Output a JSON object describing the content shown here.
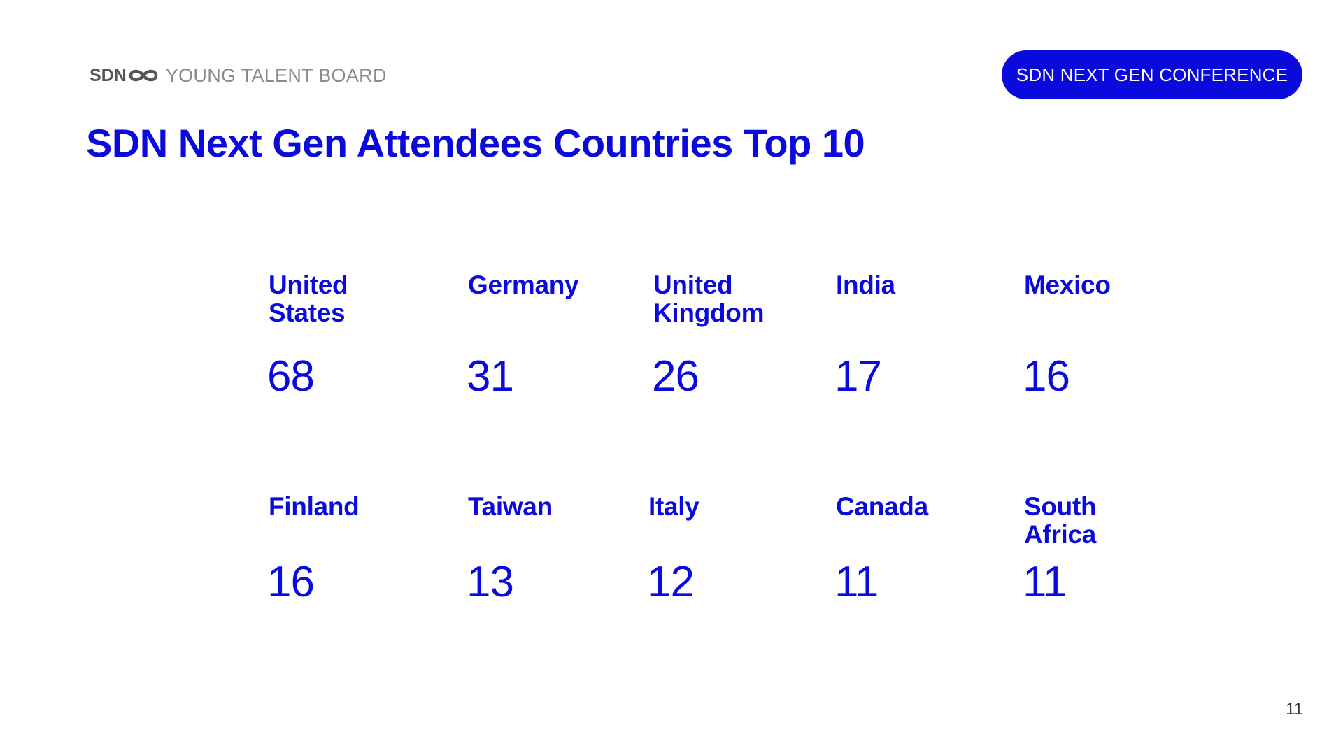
{
  "header": {
    "logo_text": "SDN",
    "brand_subtitle": "YOUNG TALENT BOARD",
    "pill_label": "SDN NEXT GEN CONFERENCE"
  },
  "title": "SDN Next Gen Attendees Countries Top 10",
  "countries": [
    {
      "name": "United States",
      "count": "68"
    },
    {
      "name": "Germany",
      "count": "31"
    },
    {
      "name": "United Kingdom",
      "count": "26"
    },
    {
      "name": "India",
      "count": "17"
    },
    {
      "name": "Mexico",
      "count": "16"
    },
    {
      "name": "Finland",
      "count": "16"
    },
    {
      "name": "Taiwan",
      "count": "13"
    },
    {
      "name": "Italy",
      "count": "12"
    },
    {
      "name": "Canada",
      "count": "11"
    },
    {
      "name": "South Africa",
      "count": "11"
    }
  ],
  "page_number": "11",
  "colors": {
    "accent": "#0a0adc",
    "logo_gray": "#555555",
    "subtitle_gray": "#8a8a8a"
  }
}
